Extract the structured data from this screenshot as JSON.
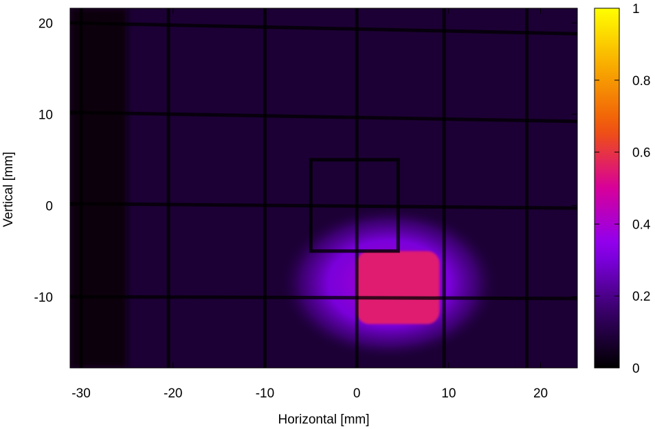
{
  "chart_data": {
    "type": "heatmap",
    "xlabel": "Horizontal [mm]",
    "ylabel": "Vertical [mm]",
    "xlim": [
      -31.2,
      24
    ],
    "ylim": [
      -17.8,
      21.6
    ],
    "x_ticks": [
      -30,
      -20,
      -10,
      0,
      10,
      20
    ],
    "y_ticks": [
      -10,
      0,
      10,
      20
    ],
    "colorbar": {
      "range": [
        0,
        1
      ],
      "ticks": [
        0,
        0.2,
        0.4,
        0.6,
        0.8,
        1
      ],
      "tick_labels": [
        "0",
        "0.2",
        "0.4",
        "0.6",
        "0.8",
        "1"
      ],
      "palette": [
        "#000000",
        "#3b006e",
        "#8a00f5",
        "#d7009a",
        "#f0560a",
        "#f8a800",
        "#ffff00"
      ]
    },
    "background_level": 0.08,
    "dark_left_band": {
      "x_range": [
        -31.2,
        -25
      ],
      "level": 0.02
    },
    "grid_wires": {
      "vertical_x": [
        -30,
        -20.5,
        -10,
        0,
        9.5,
        18.5
      ],
      "horizontal": [
        {
          "x1": -31.2,
          "y1": 20,
          "x2": 24,
          "y2": 18.8
        },
        {
          "x1": -31.2,
          "y1": 10.2,
          "x2": 24,
          "y2": 9.2
        },
        {
          "x1": -31.2,
          "y1": 0.2,
          "x2": 24,
          "y2": -0.3
        },
        {
          "x1": -31.2,
          "y1": -10,
          "x2": 24,
          "y2": -10.2
        }
      ],
      "level": 0.0
    },
    "square_frame": {
      "x": [
        -5,
        4.5
      ],
      "y": [
        -5,
        5
      ],
      "level": 0.0
    },
    "beam_spot": {
      "center": [
        3.5,
        -8.5
      ],
      "halo_radius": [
        12,
        8.5
      ],
      "halo_level": 0.3,
      "core_x_range": [
        0,
        9
      ],
      "core_y_range": [
        -13,
        -5
      ],
      "core_level": 0.55
    }
  }
}
